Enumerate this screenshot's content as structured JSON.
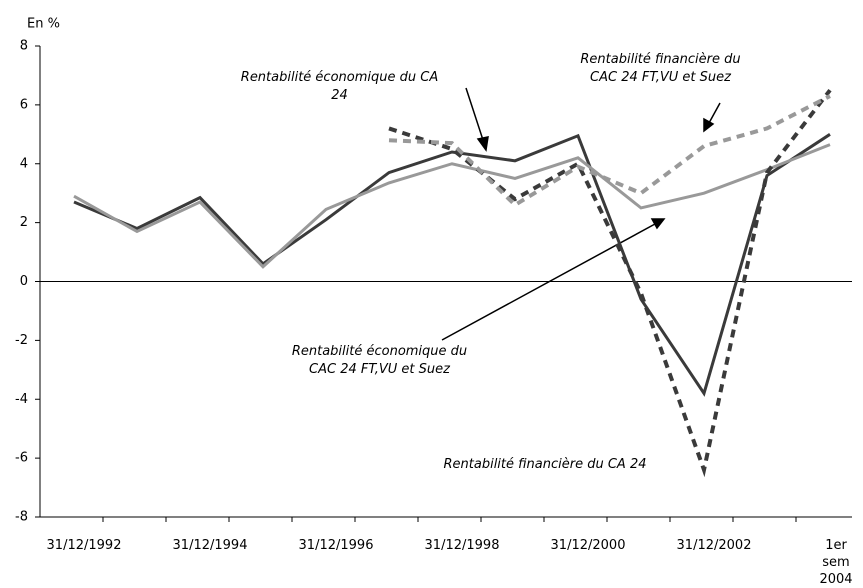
{
  "chart_data": {
    "type": "line",
    "ylabel": "En %",
    "categories": [
      "31/12/1992",
      null,
      "31/12/1994",
      null,
      "31/12/1996",
      null,
      "31/12/1998",
      null,
      "31/12/2000",
      null,
      "31/12/2002",
      null,
      "1er sem 2004"
    ],
    "series": [
      {
        "name": "Rentabilité économique du CA 24",
        "color": "#3a3a3a",
        "dash": false,
        "values": [
          2.7,
          1.8,
          2.85,
          0.6,
          2.1,
          3.7,
          4.4,
          4.1,
          4.95,
          -0.6,
          -3.8,
          3.6,
          5.0
        ]
      },
      {
        "name": "Rentabilité économique du CAC 24 FT,VU et Suez",
        "color": "#999999",
        "dash": false,
        "values": [
          2.9,
          1.7,
          2.7,
          0.5,
          2.45,
          3.35,
          4.0,
          3.5,
          4.2,
          2.5,
          3.0,
          3.8,
          4.65
        ]
      },
      {
        "name": "Rentabilité financière du CA 24",
        "color": "#3a3a3a",
        "dash": true,
        "values": [
          null,
          null,
          null,
          null,
          null,
          5.2,
          4.5,
          2.8,
          4.0,
          -0.4,
          -6.4,
          3.7,
          6.5
        ]
      },
      {
        "name": "Rentabilité financière du CAC 24 FT,VU et Suez",
        "color": "#999999",
        "dash": true,
        "values": [
          null,
          null,
          null,
          null,
          null,
          4.8,
          4.7,
          2.6,
          3.9,
          3.0,
          4.6,
          5.2,
          6.3
        ]
      }
    ],
    "ylim": [
      -8,
      8
    ],
    "yticks": [
      -8,
      -6,
      -4,
      -2,
      0,
      2,
      4,
      6,
      8
    ]
  }
}
